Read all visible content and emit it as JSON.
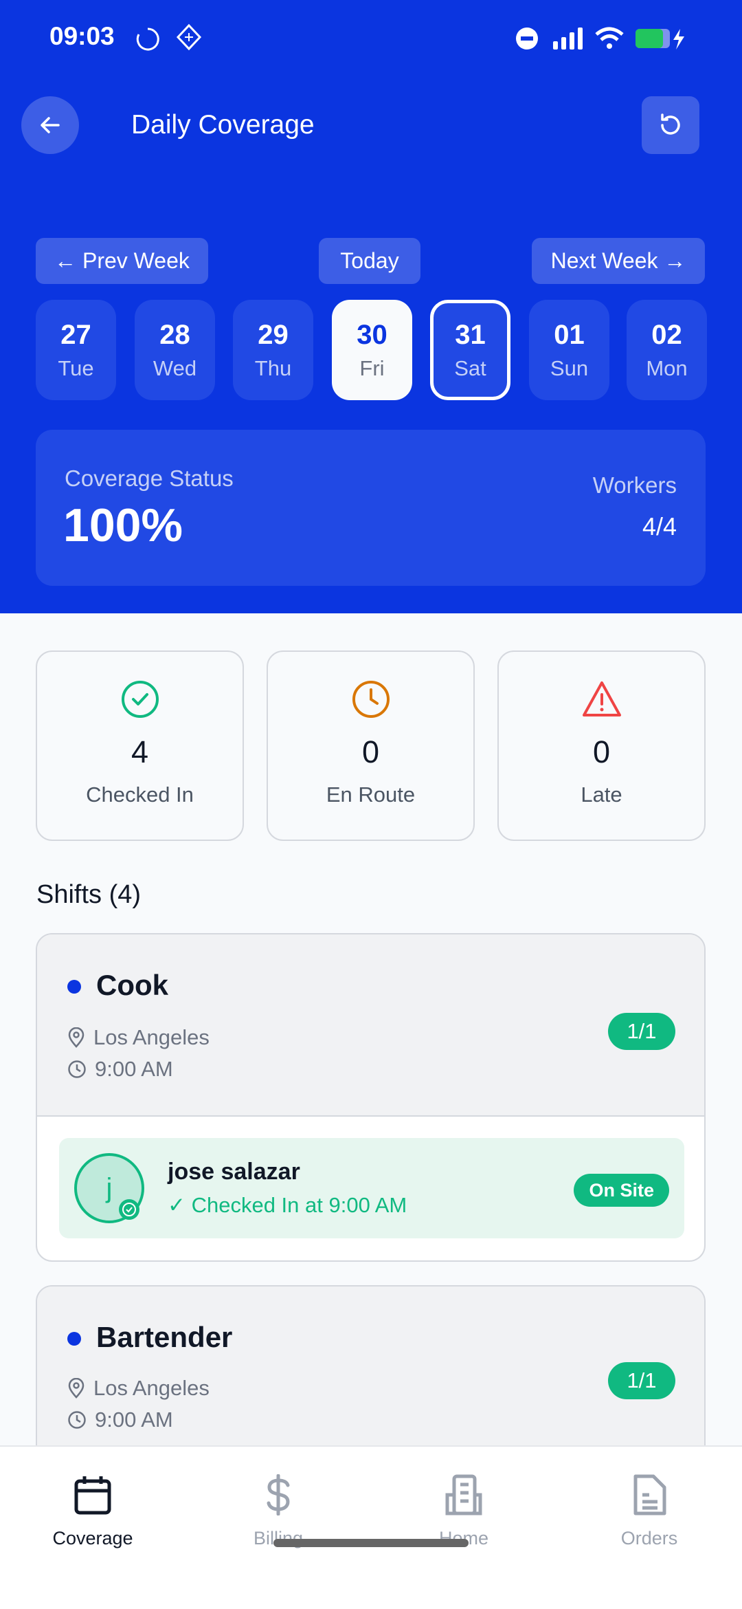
{
  "status_bar": {
    "time": "09:03"
  },
  "header": {
    "title": "Daily Coverage"
  },
  "week_nav": {
    "prev": "← Prev Week",
    "today": "Today",
    "next": "Next Week →"
  },
  "days": [
    {
      "num": "27",
      "day": "Tue"
    },
    {
      "num": "28",
      "day": "Wed"
    },
    {
      "num": "29",
      "day": "Thu"
    },
    {
      "num": "30",
      "day": "Fri"
    },
    {
      "num": "31",
      "day": "Sat"
    },
    {
      "num": "01",
      "day": "Sun"
    },
    {
      "num": "02",
      "day": "Mon"
    }
  ],
  "coverage": {
    "label": "Coverage Status",
    "value": "100%",
    "workers_label": "Workers",
    "workers_value": "4/4"
  },
  "stats": [
    {
      "value": "4",
      "label": "Checked In",
      "color": "#10b981"
    },
    {
      "value": "0",
      "label": "En Route",
      "color": "#d97706"
    },
    {
      "value": "0",
      "label": "Late",
      "color": "#ef4444"
    }
  ],
  "shifts_title": "Shifts (4)",
  "shifts": [
    {
      "role": "Cook",
      "location": "Los Angeles",
      "time": "9:00 AM",
      "filled": "1/1",
      "worker": {
        "initial": "j",
        "name": "jose salazar",
        "status_text": "✓ Checked In at 9:00 AM",
        "badge": "On Site"
      }
    },
    {
      "role": "Bartender",
      "location": "Los Angeles",
      "time": "9:00 AM",
      "filled": "1/1"
    }
  ],
  "nav": [
    {
      "label": "Coverage"
    },
    {
      "label": "Billing"
    },
    {
      "label": "Home"
    },
    {
      "label": "Orders"
    }
  ],
  "colors": {
    "brand": "#0b35e0",
    "success": "#10b981"
  }
}
